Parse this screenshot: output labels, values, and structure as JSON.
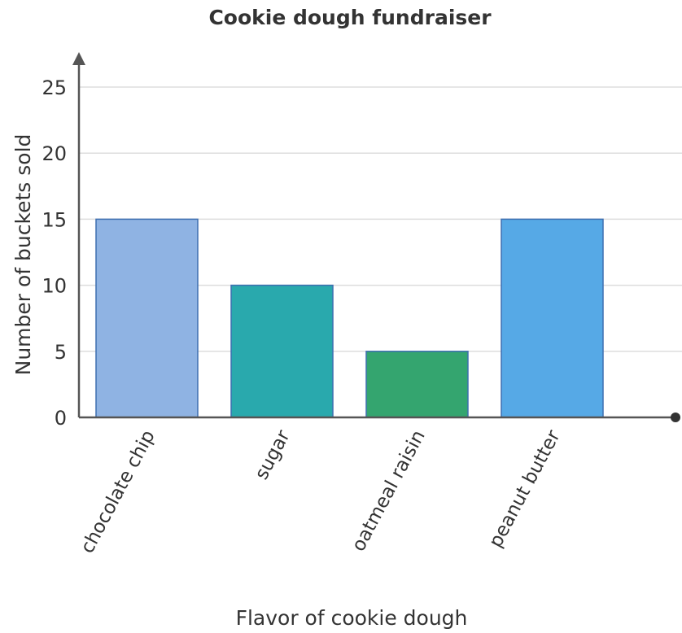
{
  "chart_data": {
    "type": "bar",
    "title": "Cookie dough fundraiser",
    "xlabel": "Flavor of cookie dough",
    "ylabel": "Number of buckets sold",
    "categories": [
      "chocolate chip",
      "sugar",
      "oatmeal raisin",
      "peanut butter"
    ],
    "values": [
      15,
      10,
      5,
      15
    ],
    "ylim": [
      0,
      25
    ],
    "yticks": [
      0,
      5,
      10,
      15,
      20,
      25
    ],
    "grid": true,
    "bar_colors": [
      "#8fb3e3",
      "#29a9ad",
      "#34a56f",
      "#56a9e6"
    ],
    "bar_border_color": "#3e6fb0",
    "grid_color": "#dddddd",
    "axis_color": "#555555"
  }
}
